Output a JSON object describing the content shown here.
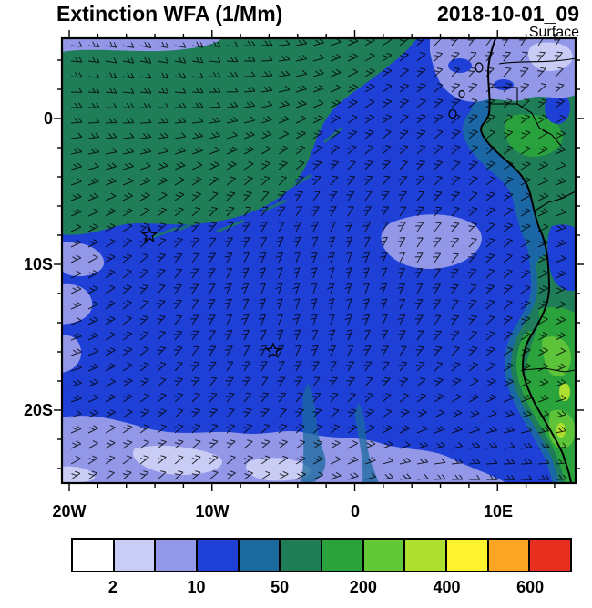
{
  "header": {
    "title": "Extinction WFA (1/Mm)",
    "timestamp": "2018-10-01_09",
    "level": "Surface"
  },
  "chart_data": {
    "type": "heatmap",
    "subtype": "filled contour map with wind barbs over coastline map",
    "title": "Extinction WFA (1/Mm)",
    "timestamp": "2018-10-01_09",
    "level": "Surface",
    "region": "southeast Atlantic and southwestern Africa",
    "x_axis": {
      "tick_labels": [
        "20W",
        "10W",
        "0",
        "10E"
      ],
      "range_deg_lon": [
        -20.5,
        15.5
      ]
    },
    "y_axis": {
      "tick_labels": [
        "0",
        "10S",
        "20S"
      ],
      "range_deg_lat": [
        5.5,
        -25
      ]
    },
    "colorbar": {
      "units": "1/Mm",
      "levels": [
        2,
        5,
        10,
        20,
        50,
        100,
        200,
        300,
        400,
        500,
        600
      ],
      "tick_labels": [
        "2",
        "10",
        "50",
        "200",
        "400",
        "600"
      ],
      "labeled_boundaries": [
        1,
        3,
        5,
        7,
        9,
        11
      ],
      "colors": [
        "#ffffff",
        "#c9cdf6",
        "#9297e8",
        "#1e40d6",
        "#1b6a9e",
        "#1f7d58",
        "#2aa33c",
        "#63c838",
        "#aede2f",
        "#fdf22e",
        "#fca423",
        "#e62f1e"
      ]
    },
    "markers": [
      {
        "shape": "open-star",
        "approx_lat": "8S",
        "approx_lon": "14.4W"
      },
      {
        "shape": "open-star",
        "approx_lat": "16S",
        "approx_lon": "5.7W"
      }
    ],
    "field_pattern": [
      "dark green-teal region (50-100 1/Mm) over northwest quadrant of ocean",
      "broad blue region (10-20 1/Mm) over central and eastern basin",
      "periwinkle (5-10 1/Mm) along southern band, left edge and northeast corner",
      "greens to bright green (100-300 1/Mm) hugging the Angola/Namibia coast",
      "wind barbs indicate south-easterly flow across the whole domain"
    ]
  }
}
